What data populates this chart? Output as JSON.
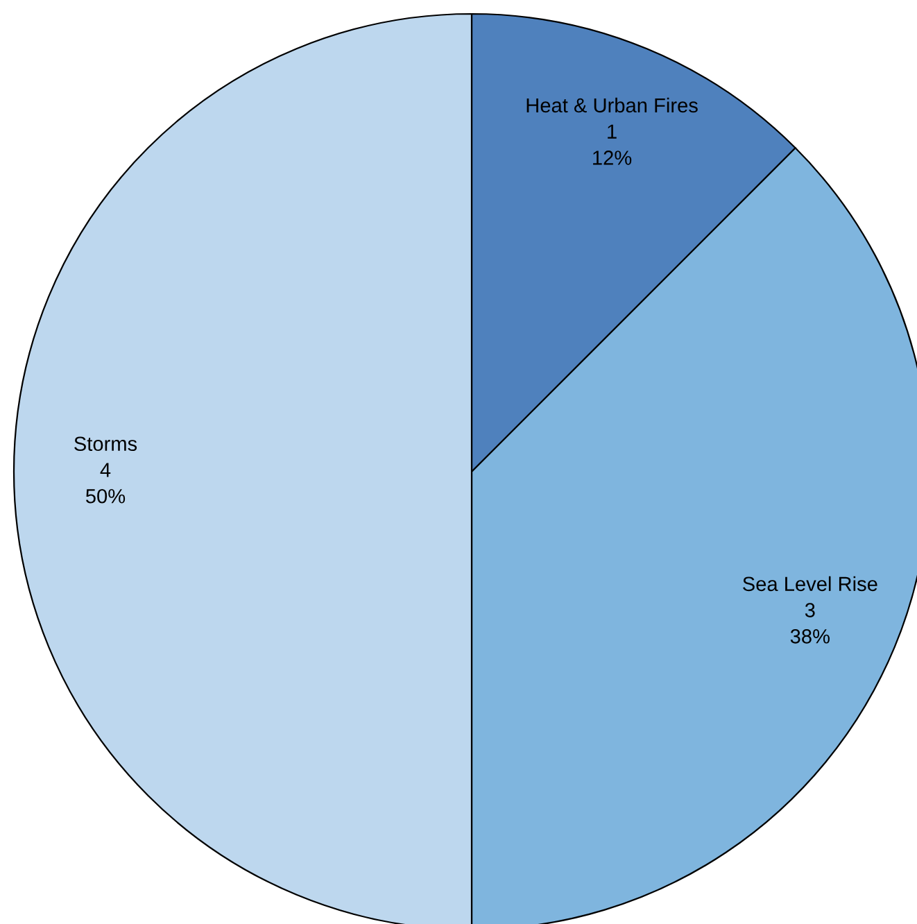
{
  "chart_data": {
    "type": "pie",
    "categories": [
      "Heat & Urban Fires",
      "Sea Level Rise",
      "Storms"
    ],
    "values": [
      1,
      3,
      4
    ],
    "value_labels": [
      "1\n12%",
      "3\n38%",
      "4\n50%"
    ],
    "colors": [
      "#4f81bd",
      "#7fb5de",
      "#bdd7ee"
    ]
  }
}
